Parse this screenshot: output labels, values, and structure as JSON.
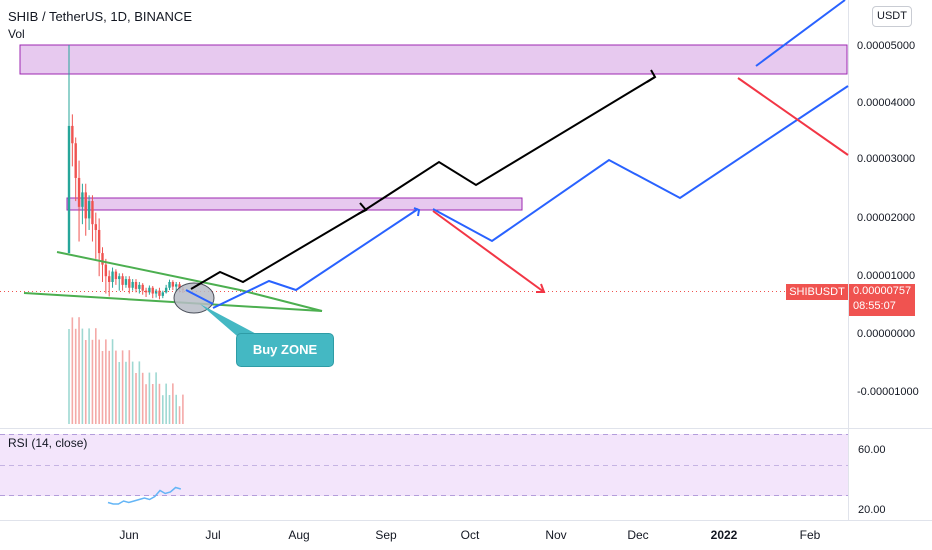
{
  "header": {
    "title": "SHIB / TetherUS, 1D, BINANCE",
    "vol_label": "Vol",
    "currency_button": "USDT"
  },
  "rsi": {
    "label": "RSI (14, close)",
    "ticks": [
      "60.00",
      "20.00"
    ]
  },
  "price_badge": {
    "symbol": "SHIBUSDT",
    "price": "0.00000757",
    "countdown": "08:55:07"
  },
  "annotation": {
    "buy_zone": "Buy ZONE"
  },
  "colors": {
    "up": "#26a69a",
    "down": "#ef5350",
    "black_path": "#000000",
    "blue_path": "#2962ff",
    "red_path": "#f23645",
    "wedge": "#4caf50",
    "zone_fill": "#e1bee7",
    "zone_border": "#9c27b0",
    "rsi_band": "#f3e5fb",
    "callout": "#44b8c3"
  },
  "chart_data": {
    "type": "candlestick",
    "title": "SHIB / TetherUS, 1D, BINANCE",
    "y_ticks": [
      "0.00005000",
      "0.00004000",
      "0.00003000",
      "0.00002000",
      "0.00001000",
      "0.00000000",
      "-0.00001000"
    ],
    "x_ticks": [
      "Jun",
      "Jul",
      "Aug",
      "Sep",
      "Oct",
      "Nov",
      "Dec",
      "2022",
      "Feb"
    ],
    "last_price": 7.57e-06,
    "zones": [
      {
        "low": 4.55e-05,
        "high": 5e-05
      },
      {
        "low": 2.12e-05,
        "high": 2.25e-05
      }
    ],
    "candles": [
      [
        1.4e-05,
        3.6e-05,
        1.4e-05,
        5e-05
      ],
      [
        3.6e-05,
        3.3e-05,
        2.9e-05,
        3.8e-05
      ],
      [
        3.3e-05,
        2.7e-05,
        2.3e-05,
        3.4e-05
      ],
      [
        2.7e-05,
        2.2e-05,
        1.6e-05,
        3e-05
      ],
      [
        2.2e-05,
        2.45e-05,
        1.9e-05,
        2.6e-05
      ],
      [
        2.45e-05,
        2e-05,
        1.7e-05,
        2.6e-05
      ],
      [
        2e-05,
        2.3e-05,
        1.8e-05,
        2.4e-05
      ],
      [
        2.3e-05,
        1.9e-05,
        1.6e-05,
        2.4e-05
      ],
      [
        1.9e-05,
        1.8e-05,
        1.3e-05,
        2.1e-05
      ],
      [
        1.8e-05,
        1.4e-05,
        1e-05,
        2e-05
      ],
      [
        1.4e-05,
        1.2e-05,
        9e-06,
        1.5e-05
      ],
      [
        1.2e-05,
        1e-05,
        7e-06,
        1.3e-05
      ],
      [
        1e-05,
        9e-06,
        6.5e-06,
        1.1e-05
      ],
      [
        9e-06,
        1.08e-05,
        8e-06,
        1.15e-05
      ],
      [
        1.08e-05,
        9.5e-06,
        8.5e-06,
        1.12e-05
      ],
      [
        9.5e-06,
        1e-05,
        7.5e-06,
        1.05e-05
      ],
      [
        1e-05,
        8.5e-06,
        7.5e-06,
        1.05e-05
      ],
      [
        8.5e-06,
        9.5e-06,
        8e-06,
        1e-05
      ],
      [
        9.5e-06,
        8e-06,
        7e-06,
        1e-05
      ],
      [
        8e-06,
        9e-06,
        7.5e-06,
        9.5e-06
      ],
      [
        9e-06,
        7.8e-06,
        7.2e-06,
        9.5e-06
      ],
      [
        7.8e-06,
        8.5e-06,
        7e-06,
        9e-06
      ],
      [
        8.5e-06,
        7.5e-06,
        6.8e-06,
        8.8e-06
      ],
      [
        7.5e-06,
        7.2e-06,
        6.4e-06,
        8e-06
      ],
      [
        7.2e-06,
        8e-06,
        6.8e-06,
        8.4e-06
      ],
      [
        8e-06,
        7e-06,
        6.2e-06,
        8.3e-06
      ],
      [
        7e-06,
        7.5e-06,
        6.3e-06,
        7.8e-06
      ],
      [
        7.5e-06,
        6.6e-06,
        6e-06,
        8e-06
      ],
      [
        6.6e-06,
        7.2e-06,
        6.2e-06,
        7.5e-06
      ],
      [
        7.2e-06,
        8e-06,
        7e-06,
        8.5e-06
      ],
      [
        8e-06,
        9e-06,
        7.6e-06,
        9.4e-06
      ],
      [
        9e-06,
        8.2e-06,
        7.6e-06,
        9.3e-06
      ],
      [
        8.2e-06,
        8.6e-06,
        7.4e-06,
        9e-06
      ],
      [
        8.6e-06,
        7.8e-06,
        7.2e-06,
        9e-06
      ],
      [
        7.8e-06,
        7.6e-06,
        7.1e-06,
        8.2e-06
      ]
    ],
    "rsi_values": [
      25,
      24,
      24,
      26,
      25,
      26,
      27,
      28,
      27,
      29,
      33,
      31,
      32,
      35,
      34
    ]
  }
}
